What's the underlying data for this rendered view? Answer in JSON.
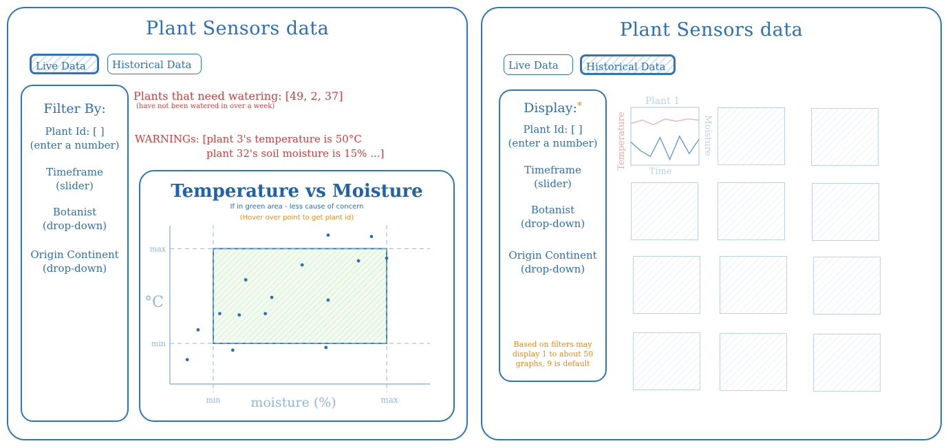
{
  "colors": {
    "accent": "#2a74c6",
    "warning": "#d83a3a",
    "hint": "#e8891a",
    "faded": "#8fb6df",
    "zone": "#7ed07a"
  },
  "live": {
    "title": "Plant Sensors data",
    "tabs": [
      {
        "label": "Live Data",
        "active": true
      },
      {
        "label": "Historical Data",
        "active": false
      }
    ],
    "sidebar": {
      "heading": "Filter By:",
      "items": [
        {
          "line1": "Plant Id: [ ]",
          "line2": "(enter a number)"
        },
        {
          "line1": "Timeframe",
          "line2": "(slider)"
        },
        {
          "line1": "Botanist",
          "line2": "(drop-down)"
        },
        {
          "line1": "Origin Continent",
          "line2": "(drop-down)"
        }
      ]
    },
    "watering": {
      "text": "Plants that need watering: [49, 2, 37]",
      "note": "(have not been watered in over a week)"
    },
    "warnings": {
      "line1": "WARNINGs: [plant 3's temperature is 50°C",
      "line2": "plant 32's soil moisture is 15% ...]"
    },
    "chart": {
      "title": "Temperature vs Moisture",
      "subtitle": "If in green area - less cause of concern",
      "hint": "(Hover over point to get plant id)"
    }
  },
  "chart_data": {
    "type": "scatter",
    "title": "Temperature vs Moisture",
    "xlabel": "moisture (%)",
    "ylabel": "°C",
    "x_ticks": [
      "min",
      "max"
    ],
    "y_ticks": [
      "max",
      "min"
    ],
    "xlim": [
      0,
      1.2
    ],
    "ylim": [
      0,
      1.2
    ],
    "safe_zone": {
      "x": [
        0.2,
        1.0
      ],
      "y": [
        0.3,
        1.0
      ]
    },
    "points": [
      {
        "x": 0.08,
        "y": 0.18
      },
      {
        "x": 0.13,
        "y": 0.4
      },
      {
        "x": 0.23,
        "y": 0.52
      },
      {
        "x": 0.29,
        "y": 0.25
      },
      {
        "x": 0.32,
        "y": 0.51
      },
      {
        "x": 0.35,
        "y": 0.77
      },
      {
        "x": 0.44,
        "y": 0.52
      },
      {
        "x": 0.47,
        "y": 0.64
      },
      {
        "x": 0.61,
        "y": 0.88
      },
      {
        "x": 0.72,
        "y": 0.27
      },
      {
        "x": 0.73,
        "y": 0.62
      },
      {
        "x": 0.73,
        "y": 1.1
      },
      {
        "x": 0.87,
        "y": 0.91
      },
      {
        "x": 0.93,
        "y": 1.09
      },
      {
        "x": 1.0,
        "y": 0.93
      }
    ]
  },
  "historical": {
    "title": "Plant Sensors data",
    "tabs": [
      {
        "label": "Live Data",
        "active": false
      },
      {
        "label": "Historical Data",
        "active": true
      }
    ],
    "sidebar": {
      "heading": "Display:",
      "heading_mark": "*",
      "items": [
        {
          "line1": "Plant Id: [ ]",
          "line2": "(enter a number)"
        },
        {
          "line1": "Timeframe",
          "line2": "(slider)"
        },
        {
          "line1": "Botanist",
          "line2": "(drop-down)"
        },
        {
          "line1": "Origin Continent",
          "line2": "(drop-down)"
        }
      ],
      "note": "Based on filters may display 1 to about 50 graphs, 9 is default"
    },
    "mini_chart": {
      "title": "Plant 1",
      "left_label": "Temperature",
      "right_label": "Moisture",
      "bottom_label": "Time",
      "temperature": [
        0.72,
        0.78,
        0.7,
        0.8,
        0.76,
        0.8,
        0.78
      ],
      "moisture": [
        0.4,
        0.25,
        0.15,
        0.48,
        0.1,
        0.5,
        0.2,
        0.45
      ]
    }
  }
}
